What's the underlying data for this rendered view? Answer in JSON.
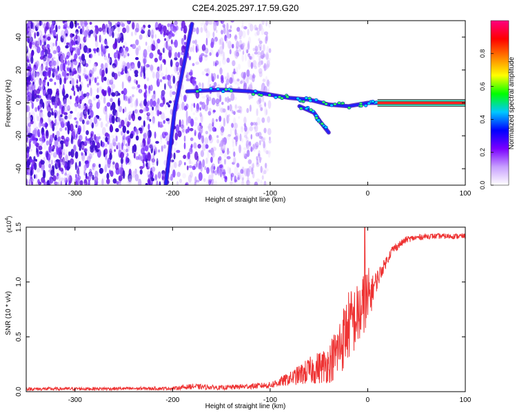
{
  "figure_title": "C2E4.2025.297.17.59.G20",
  "chart_data": [
    {
      "type": "heatmap",
      "xlabel": "Height of straight line (km)",
      "ylabel": "Frequency (Hz)",
      "xlim": [
        -350,
        100
      ],
      "ylim": [
        -50,
        50
      ],
      "x_ticks": [
        -300,
        -200,
        -100,
        0,
        100
      ],
      "y_ticks": [
        -40,
        -20,
        0,
        20,
        40
      ],
      "colorbar": {
        "label": "Normalized spectral amplitude",
        "range": [
          0,
          1
        ],
        "ticks": [
          0.0,
          0.2,
          0.4,
          0.6,
          0.8
        ],
        "colors": [
          "#ffffff",
          "#c8a0ff",
          "#7a00ff",
          "#0000ff",
          "#00c8ff",
          "#00ff00",
          "#ffff00",
          "#ff8000",
          "#ff0000",
          "#ff0080"
        ]
      },
      "features": [
        {
          "name": "steep streak",
          "points": [
            [
              -207,
              -50
            ],
            [
              -198,
              -5
            ],
            [
              -180,
              48
            ]
          ]
        },
        {
          "name": "main trace",
          "points": [
            [
              -185,
              7
            ],
            [
              -150,
              8
            ],
            [
              -120,
              7
            ],
            [
              -100,
              5
            ],
            [
              -80,
              3
            ],
            [
              -60,
              2
            ],
            [
              -40,
              -1
            ],
            [
              -20,
              -2
            ],
            [
              0,
              0
            ],
            [
              10,
              0
            ]
          ]
        },
        {
          "name": "lower branch",
          "points": [
            [
              -70,
              -2
            ],
            [
              -55,
              -6
            ],
            [
              -48,
              -12
            ],
            [
              -40,
              -18
            ]
          ]
        },
        {
          "name": "carrier line",
          "frequency": 0,
          "x_range": [
            10,
            100
          ]
        }
      ]
    },
    {
      "type": "line",
      "xlabel": "Height of straight line (km)",
      "ylabel": "SNR (10 * v/v)",
      "y_multiplier": "(x10",
      "y_multiplier_exp": "4",
      "y_multiplier_close": ")",
      "xlim": [
        -350,
        100
      ],
      "ylim": [
        0,
        1.5
      ],
      "x_ticks": [
        -300,
        -200,
        -100,
        0,
        100
      ],
      "y_ticks": [
        "0.0",
        "0.5",
        "1.0",
        "1.5"
      ],
      "series_color": "#ee3333",
      "envelope": [
        {
          "x": -350,
          "base": 0.02,
          "spread": 0.03
        },
        {
          "x": -200,
          "base": 0.025,
          "spread": 0.03
        },
        {
          "x": -180,
          "base": 0.04,
          "spread": 0.05
        },
        {
          "x": -150,
          "base": 0.03,
          "spread": 0.04
        },
        {
          "x": -100,
          "base": 0.05,
          "spread": 0.06
        },
        {
          "x": -80,
          "base": 0.1,
          "spread": 0.12
        },
        {
          "x": -60,
          "base": 0.15,
          "spread": 0.25
        },
        {
          "x": -40,
          "base": 0.2,
          "spread": 0.35
        },
        {
          "x": -30,
          "base": 0.3,
          "spread": 0.55
        },
        {
          "x": -20,
          "base": 0.5,
          "spread": 0.65
        },
        {
          "x": -10,
          "base": 0.6,
          "spread": 0.6
        },
        {
          "x": 0,
          "base": 0.7,
          "spread": 0.7
        },
        {
          "x": 5,
          "base": 0.9,
          "spread": 0.25
        },
        {
          "x": 15,
          "base": 1.1,
          "spread": 0.12
        },
        {
          "x": 25,
          "base": 1.28,
          "spread": 0.08
        },
        {
          "x": 40,
          "base": 1.38,
          "spread": 0.06
        },
        {
          "x": 60,
          "base": 1.41,
          "spread": 0.05
        },
        {
          "x": 100,
          "base": 1.41,
          "spread": 0.05
        }
      ],
      "peak": {
        "x": -3,
        "y": 1.52
      }
    }
  ]
}
